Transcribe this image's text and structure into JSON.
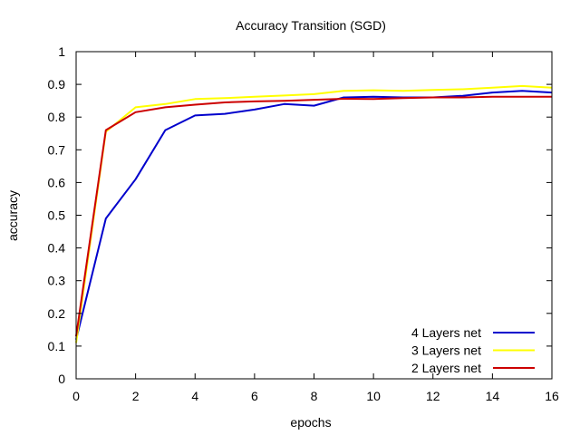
{
  "chart_data": {
    "type": "line",
    "title": "Accuracy Transition (SGD)",
    "xlabel": "epochs",
    "ylabel": "accuracy",
    "xlim": [
      0,
      16
    ],
    "ylim": [
      0,
      1
    ],
    "xticks": [
      0,
      2,
      4,
      6,
      8,
      10,
      12,
      14,
      16
    ],
    "yticks": [
      0,
      0.1,
      0.2,
      0.3,
      0.4,
      0.5,
      0.6,
      0.7,
      0.8,
      0.9,
      1
    ],
    "ytick_labels": [
      "0",
      "0.1",
      "0.2",
      "0.3",
      "0.4",
      "0.5",
      "0.6",
      "0.7",
      "0.8",
      "0.9",
      "1"
    ],
    "grid": false,
    "legend_position": "bottom-right",
    "x": [
      0,
      1,
      2,
      3,
      4,
      5,
      6,
      7,
      8,
      9,
      10,
      11,
      12,
      13,
      14,
      15,
      16
    ],
    "series": [
      {
        "name": "4 Layers net",
        "color": "#0000cc",
        "values": [
          0.12,
          0.49,
          0.61,
          0.76,
          0.805,
          0.81,
          0.823,
          0.84,
          0.835,
          0.86,
          0.862,
          0.86,
          0.86,
          0.865,
          0.875,
          0.88,
          0.875
        ]
      },
      {
        "name": "3 Layers net",
        "color": "#ffff00",
        "values": [
          0.11,
          0.755,
          0.83,
          0.84,
          0.855,
          0.858,
          0.862,
          0.866,
          0.87,
          0.88,
          0.882,
          0.88,
          0.883,
          0.885,
          0.89,
          0.895,
          0.89
        ]
      },
      {
        "name": "2 Layers net",
        "color": "#cc0000",
        "values": [
          0.13,
          0.76,
          0.815,
          0.83,
          0.838,
          0.845,
          0.848,
          0.85,
          0.853,
          0.856,
          0.855,
          0.858,
          0.86,
          0.86,
          0.862,
          0.862,
          0.862
        ]
      }
    ]
  }
}
